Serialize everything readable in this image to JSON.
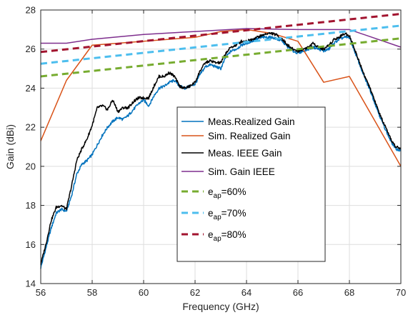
{
  "chart_data": {
    "type": "line",
    "xlabel": "Frequency (GHz)",
    "ylabel": "Gain (dBi)",
    "xlim": [
      56,
      70
    ],
    "ylim": [
      14,
      28
    ],
    "xticks": [
      56,
      58,
      60,
      62,
      64,
      66,
      68,
      70
    ],
    "yticks": [
      14,
      16,
      18,
      20,
      22,
      24,
      26,
      28
    ],
    "grid": true,
    "legend_position": "center-right",
    "series": [
      {
        "name": "Meas.Realized Gain",
        "color": "#0072BD",
        "style": "solid",
        "noisy": true,
        "x": [
          56.0,
          56.2,
          56.4,
          56.6,
          56.8,
          57.0,
          57.2,
          57.4,
          57.6,
          57.8,
          58.0,
          58.2,
          58.4,
          58.6,
          58.8,
          59.0,
          59.2,
          59.4,
          59.6,
          59.8,
          60.0,
          60.2,
          60.4,
          60.6,
          60.8,
          61.0,
          61.2,
          61.4,
          61.6,
          61.8,
          62.0,
          62.2,
          62.4,
          62.6,
          62.8,
          63.0,
          63.2,
          63.4,
          63.6,
          63.8,
          64.0,
          64.2,
          64.4,
          64.6,
          64.8,
          65.0,
          65.2,
          65.4,
          65.6,
          65.8,
          66.0,
          66.2,
          66.4,
          66.6,
          66.8,
          67.0,
          67.2,
          67.4,
          67.6,
          67.8,
          68.0,
          68.2,
          68.4,
          68.6,
          68.8,
          69.0,
          69.2,
          69.4,
          69.6,
          69.8,
          70.0
        ],
        "y": [
          14.8,
          15.8,
          16.8,
          17.6,
          17.8,
          17.7,
          18.5,
          19.6,
          20.1,
          20.3,
          20.6,
          21.1,
          21.6,
          22.0,
          22.3,
          22.5,
          22.4,
          22.6,
          22.9,
          23.2,
          23.4,
          23.1,
          23.6,
          24.0,
          24.1,
          24.3,
          24.4,
          24.1,
          24.0,
          24.1,
          24.2,
          24.7,
          25.1,
          25.2,
          25.1,
          25.0,
          25.6,
          25.9,
          26.0,
          26.2,
          26.3,
          26.4,
          26.5,
          26.6,
          26.6,
          26.6,
          26.5,
          26.4,
          26.1,
          25.9,
          25.8,
          25.9,
          26.0,
          26.1,
          26.0,
          25.9,
          26.0,
          26.3,
          26.5,
          26.6,
          26.6,
          25.9,
          25.2,
          24.5,
          23.9,
          23.2,
          22.5,
          21.9,
          21.3,
          20.9,
          20.8
        ]
      },
      {
        "name": "Sim. Realized Gain",
        "color": "#D95319",
        "style": "solid",
        "noisy": false,
        "x": [
          56,
          57,
          58,
          59,
          60,
          61,
          62,
          63,
          64,
          65,
          66,
          67,
          68,
          69,
          70
        ],
        "y": [
          21.3,
          24.4,
          26.2,
          26.3,
          26.4,
          26.5,
          26.6,
          26.9,
          27.0,
          26.8,
          26.4,
          24.3,
          24.6,
          22.3,
          20.0
        ]
      },
      {
        "name": "Meas. IEEE Gain",
        "color": "#000000",
        "style": "solid",
        "noisy": true,
        "x": [
          56.0,
          56.2,
          56.4,
          56.6,
          56.8,
          57.0,
          57.2,
          57.4,
          57.6,
          57.8,
          58.0,
          58.2,
          58.4,
          58.6,
          58.8,
          59.0,
          59.2,
          59.4,
          59.6,
          59.8,
          60.0,
          60.2,
          60.4,
          60.6,
          60.8,
          61.0,
          61.2,
          61.4,
          61.6,
          61.8,
          62.0,
          62.2,
          62.4,
          62.6,
          62.8,
          63.0,
          63.2,
          63.4,
          63.6,
          63.8,
          64.0,
          64.2,
          64.4,
          64.6,
          64.8,
          65.0,
          65.2,
          65.4,
          65.6,
          65.8,
          66.0,
          66.2,
          66.4,
          66.6,
          66.8,
          67.0,
          67.2,
          67.4,
          67.6,
          67.8,
          68.0,
          68.2,
          68.4,
          68.6,
          68.8,
          69.0,
          69.2,
          69.4,
          69.6,
          69.8,
          70.0
        ],
        "y": [
          15.0,
          16.0,
          17.2,
          17.9,
          18.0,
          17.8,
          19.0,
          20.3,
          20.9,
          21.4,
          22.1,
          23.0,
          23.1,
          22.9,
          23.4,
          22.8,
          23.0,
          23.0,
          23.3,
          23.5,
          23.5,
          23.5,
          24.1,
          24.6,
          24.6,
          24.8,
          24.6,
          24.1,
          24.0,
          24.1,
          24.3,
          24.9,
          25.3,
          25.4,
          25.3,
          25.3,
          25.8,
          26.1,
          26.2,
          26.4,
          26.4,
          26.5,
          26.6,
          26.7,
          26.8,
          26.8,
          26.7,
          26.5,
          26.2,
          26.0,
          25.9,
          26.0,
          26.1,
          26.3,
          26.1,
          26.0,
          26.2,
          26.5,
          26.6,
          26.8,
          26.7,
          26.0,
          25.3,
          24.6,
          24.0,
          23.3,
          22.6,
          22.0,
          21.4,
          21.0,
          20.9
        ]
      },
      {
        "name": "Sim. Gain IEEE",
        "color": "#7E2F8E",
        "style": "solid",
        "noisy": false,
        "x": [
          56,
          57,
          58,
          60,
          62,
          64,
          66,
          68,
          70
        ],
        "y": [
          26.3,
          26.3,
          26.5,
          26.75,
          26.9,
          27.05,
          27.0,
          27.0,
          26.1
        ]
      },
      {
        "name": "e_ap=60%",
        "label_main": "e",
        "label_sub": "ap",
        "label_rest": "=60%",
        "color": "#77AC30",
        "style": "dashed",
        "noisy": false,
        "x": [
          56,
          70
        ],
        "y": [
          24.6,
          26.55
        ]
      },
      {
        "name": "e_ap=70%",
        "label_main": "e",
        "label_sub": "ap",
        "label_rest": "=70%",
        "color": "#4DBEEE",
        "style": "dashed",
        "noisy": false,
        "x": [
          56,
          70
        ],
        "y": [
          25.25,
          27.2
        ]
      },
      {
        "name": "e_ap=80%",
        "label_main": "e",
        "label_sub": "ap",
        "label_rest": "=80%",
        "color": "#A2142F",
        "style": "dashed",
        "noisy": false,
        "x": [
          56,
          70
        ],
        "y": [
          25.85,
          27.8
        ]
      }
    ]
  }
}
